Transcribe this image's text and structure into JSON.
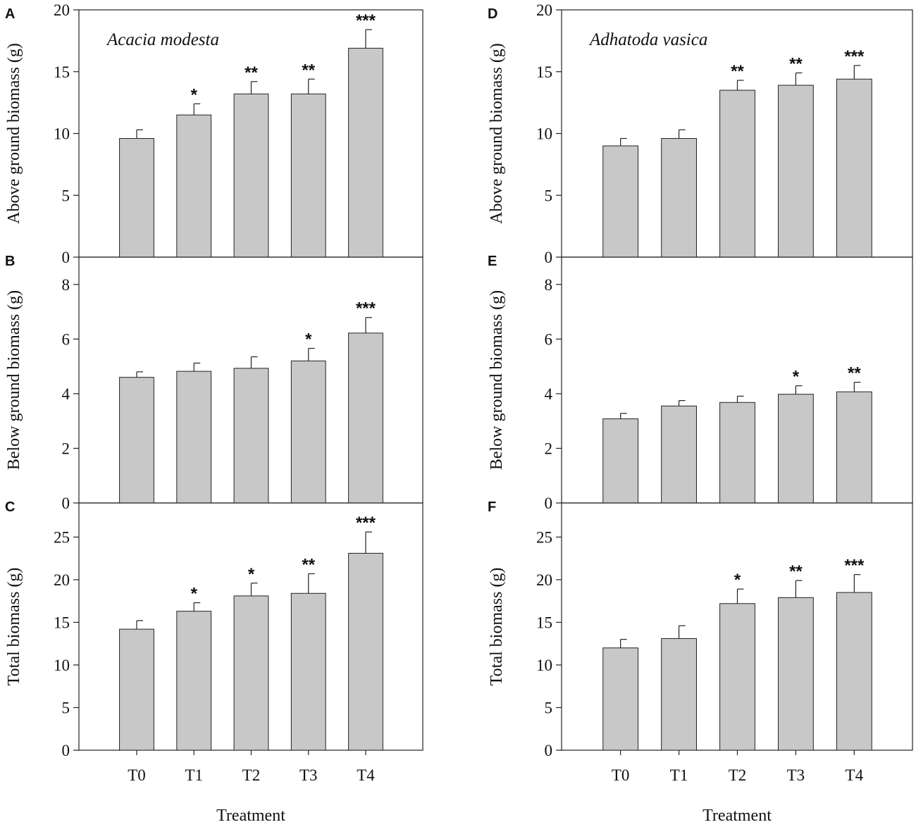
{
  "colors": {
    "bar_fill": "#c8c8c8",
    "bar_stroke": "#222222",
    "axis": "#222222"
  },
  "chart_data": [
    {
      "type": "bar",
      "panel": "A",
      "species": "Acacia modesta",
      "ylabel": "Above ground biomass (g)",
      "xlabel": "",
      "categories": [
        "T0",
        "T1",
        "T2",
        "T3",
        "T4"
      ],
      "values": [
        9.6,
        11.5,
        13.2,
        13.2,
        16.9
      ],
      "errors": [
        0.7,
        0.9,
        1.0,
        1.2,
        1.5
      ],
      "significance": [
        "",
        "*",
        "**",
        "**",
        "***"
      ],
      "ylim": [
        0,
        20
      ],
      "yticks": [
        0,
        5,
        10,
        15,
        20
      ]
    },
    {
      "type": "bar",
      "panel": "B",
      "species": "",
      "ylabel": "Below ground biomass (g)",
      "xlabel": "",
      "categories": [
        "T0",
        "T1",
        "T2",
        "T3",
        "T4"
      ],
      "values": [
        4.6,
        4.82,
        4.93,
        5.2,
        6.22
      ],
      "errors": [
        0.2,
        0.3,
        0.42,
        0.46,
        0.57
      ],
      "significance": [
        "",
        "",
        "",
        "*",
        "***"
      ],
      "ylim": [
        0,
        9
      ],
      "yticks": [
        0,
        2,
        4,
        6,
        8
      ]
    },
    {
      "type": "bar",
      "panel": "C",
      "species": "",
      "ylabel": "Total biomass (g)",
      "xlabel": "Treatment",
      "categories": [
        "T0",
        "T1",
        "T2",
        "T3",
        "T4"
      ],
      "values": [
        14.2,
        16.3,
        18.1,
        18.4,
        23.1
      ],
      "errors": [
        1.0,
        1.0,
        1.5,
        2.3,
        2.5
      ],
      "significance": [
        "",
        "*",
        "*",
        "**",
        "***"
      ],
      "ylim": [
        0,
        29
      ],
      "yticks": [
        0,
        5,
        10,
        15,
        20,
        25
      ]
    },
    {
      "type": "bar",
      "panel": "D",
      "species": "Adhatoda vasica",
      "ylabel": "Above ground biomass (g)",
      "xlabel": "",
      "categories": [
        "T0",
        "T1",
        "T2",
        "T3",
        "T4"
      ],
      "values": [
        9.0,
        9.6,
        13.5,
        13.9,
        14.4
      ],
      "errors": [
        0.6,
        0.7,
        0.8,
        1.0,
        1.1
      ],
      "significance": [
        "",
        "",
        "**",
        "**",
        "***"
      ],
      "ylim": [
        0,
        20
      ],
      "yticks": [
        0,
        5,
        10,
        15,
        20
      ]
    },
    {
      "type": "bar",
      "panel": "E",
      "species": "",
      "ylabel": "Below ground biomass (g)",
      "xlabel": "",
      "categories": [
        "T0",
        "T1",
        "T2",
        "T3",
        "T4"
      ],
      "values": [
        3.08,
        3.55,
        3.68,
        3.98,
        4.07
      ],
      "errors": [
        0.2,
        0.2,
        0.23,
        0.31,
        0.35
      ],
      "significance": [
        "",
        "",
        "",
        "*",
        "**"
      ],
      "ylim": [
        0,
        9
      ],
      "yticks": [
        0,
        2,
        4,
        6,
        8
      ]
    },
    {
      "type": "bar",
      "panel": "F",
      "species": "",
      "ylabel": "Total biomass (g)",
      "xlabel": "Treatment",
      "categories": [
        "T0",
        "T1",
        "T2",
        "T3",
        "T4"
      ],
      "values": [
        12.0,
        13.1,
        17.2,
        17.9,
        18.5
      ],
      "errors": [
        1.0,
        1.5,
        1.7,
        2.0,
        2.1
      ],
      "significance": [
        "",
        "",
        "*",
        "**",
        "***"
      ],
      "ylim": [
        0,
        29
      ],
      "yticks": [
        0,
        5,
        10,
        15,
        20,
        25
      ]
    }
  ]
}
